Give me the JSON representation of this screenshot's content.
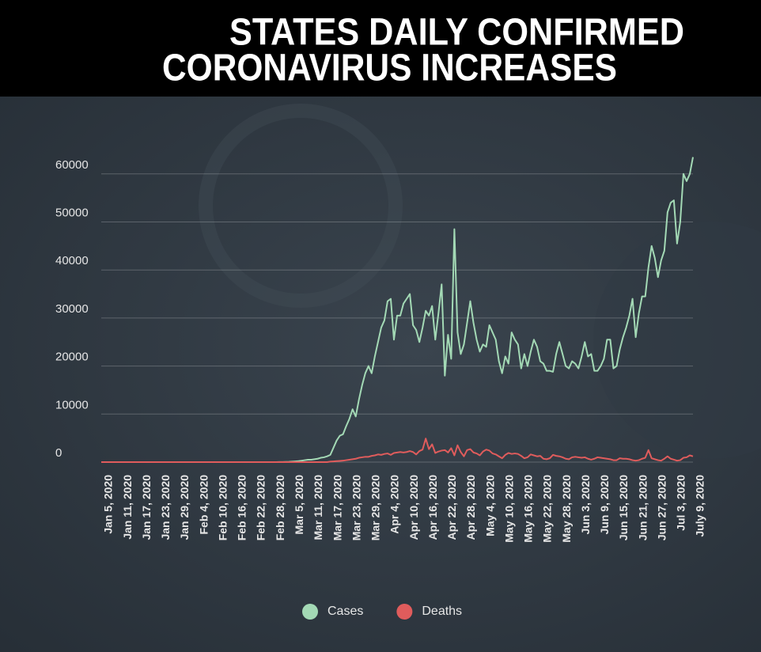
{
  "chart_data": {
    "type": "line",
    "title": [
      "STATES DAILY CONFIRMED",
      "CORONAVIRUS INCREASES"
    ],
    "categories": [
      "Jan 5, 2020",
      null,
      null,
      null,
      null,
      null,
      "Jan 11, 2020",
      null,
      null,
      null,
      null,
      null,
      "Jan 17, 2020",
      null,
      null,
      null,
      null,
      null,
      "Jan 23, 2020",
      null,
      null,
      null,
      null,
      null,
      "Jan 29, 2020",
      null,
      null,
      null,
      null,
      null,
      "Feb 4, 2020",
      null,
      null,
      null,
      null,
      null,
      "Feb 10, 2020",
      null,
      null,
      null,
      null,
      null,
      "Feb 16, 2020",
      null,
      null,
      null,
      null,
      null,
      "Feb 22, 2020",
      null,
      null,
      null,
      null,
      null,
      "Feb 28, 2020",
      null,
      null,
      null,
      null,
      null,
      "Mar 5, 2020",
      null,
      null,
      null,
      null,
      null,
      "Mar 11, 2020",
      null,
      null,
      null,
      null,
      null,
      "Mar 17, 2020",
      null,
      null,
      null,
      null,
      null,
      "Mar 23, 2020",
      null,
      null,
      null,
      null,
      null,
      "Mar 29, 2020",
      null,
      null,
      null,
      null,
      null,
      "Apr 4, 2020",
      null,
      null,
      null,
      null,
      null,
      "Apr 10, 2020",
      null,
      null,
      null,
      null,
      null,
      "Apr 16, 2020",
      null,
      null,
      null,
      null,
      null,
      "Apr 22, 2020",
      null,
      null,
      null,
      null,
      null,
      "Apr 28, 2020",
      null,
      null,
      null,
      null,
      null,
      "May 4, 2020",
      null,
      null,
      null,
      null,
      null,
      "May 10, 2020",
      null,
      null,
      null,
      null,
      null,
      "May 16, 2020",
      null,
      null,
      null,
      null,
      null,
      "May 22, 2020",
      null,
      null,
      null,
      null,
      null,
      "May 28, 2020",
      null,
      null,
      null,
      null,
      null,
      "Jun 3, 2020",
      null,
      null,
      null,
      null,
      null,
      "Jun 9, 2020",
      null,
      null,
      null,
      null,
      null,
      "Jun 15, 2020",
      null,
      null,
      null,
      null,
      null,
      "Jun 21, 2020",
      null,
      null,
      null,
      null,
      null,
      "Jun 27, 2020",
      null,
      null,
      null,
      null,
      null,
      "Jul 3, 2020",
      null,
      null,
      null,
      null,
      null,
      "July 9, 2020"
    ],
    "series": [
      {
        "name": "Cases",
        "color": "#a3d9b5",
        "values": [
          0,
          0,
          0,
          0,
          0,
          0,
          0,
          0,
          0,
          0,
          0,
          0,
          0,
          0,
          0,
          0,
          0,
          0,
          0,
          0,
          0,
          0,
          0,
          0,
          0,
          0,
          0,
          0,
          0,
          0,
          0,
          0,
          0,
          0,
          0,
          0,
          0,
          0,
          0,
          0,
          0,
          0,
          0,
          0,
          0,
          0,
          0,
          0,
          0,
          0,
          0,
          0,
          5,
          5,
          10,
          10,
          20,
          30,
          40,
          60,
          100,
          150,
          200,
          300,
          400,
          500,
          500,
          600,
          700,
          900,
          1000,
          1200,
          1500,
          3000,
          4500,
          5500,
          5800,
          7500,
          9000,
          11000,
          9500,
          13000,
          16000,
          18500,
          20000,
          18500,
          22000,
          25000,
          28000,
          29500,
          33500,
          34000,
          25500,
          30500,
          30500,
          33000,
          34000,
          35000,
          28500,
          27500,
          25000,
          28000,
          31500,
          30500,
          32500,
          25500,
          31000,
          37000,
          18000,
          26500,
          21500,
          48500,
          27000,
          22500,
          24500,
          29000,
          33500,
          29000,
          25500,
          23000,
          24500,
          24000,
          28500,
          27000,
          25500,
          21000,
          18500,
          22000,
          20500,
          27000,
          25500,
          24500,
          19500,
          22500,
          20000,
          23000,
          25500,
          24000,
          21000,
          20500,
          19000,
          19000,
          18800,
          22500,
          25000,
          22500,
          20000,
          19500,
          21000,
          20500,
          19500,
          22000,
          25000,
          22000,
          22500,
          19000,
          19000,
          20000,
          21500,
          25500,
          25500,
          19500,
          20000,
          23500,
          26000,
          28000,
          30500,
          34000,
          26000,
          31000,
          34500,
          34500,
          40500,
          45000,
          42500,
          38500,
          42000,
          44000,
          52000,
          54000,
          54500,
          45500,
          50000,
          60000,
          58500,
          60000,
          63500
        ]
      },
      {
        "name": "Deaths",
        "color": "#e05c5c",
        "values": [
          0,
          0,
          0,
          0,
          0,
          0,
          0,
          0,
          0,
          0,
          0,
          0,
          0,
          0,
          0,
          0,
          0,
          0,
          0,
          0,
          0,
          0,
          0,
          0,
          0,
          0,
          0,
          0,
          0,
          0,
          0,
          0,
          0,
          0,
          0,
          0,
          0,
          0,
          0,
          0,
          0,
          0,
          0,
          0,
          0,
          0,
          0,
          0,
          0,
          0,
          0,
          0,
          0,
          0,
          0,
          0,
          0,
          0,
          0,
          0,
          0,
          0,
          0,
          0,
          0,
          0,
          0,
          0,
          0,
          0,
          0,
          0,
          100,
          150,
          200,
          250,
          300,
          400,
          500,
          600,
          700,
          900,
          1000,
          1100,
          1100,
          1300,
          1400,
          1600,
          1500,
          1700,
          1800,
          1500,
          1900,
          2000,
          2100,
          2000,
          2100,
          2300,
          2100,
          1600,
          2300,
          2600,
          4900,
          2700,
          3700,
          1900,
          2200,
          2400,
          2500,
          2000,
          2900,
          1400,
          3500,
          2100,
          1200,
          2500,
          2700,
          2000,
          1800,
          1400,
          2200,
          2600,
          2400,
          1800,
          1600,
          1200,
          800,
          1500,
          1900,
          1700,
          1800,
          1700,
          1300,
          800,
          1000,
          1600,
          1400,
          1200,
          1300,
          700,
          600,
          800,
          1500,
          1300,
          1200,
          1000,
          700,
          600,
          1000,
          1100,
          1000,
          900,
          1000,
          700,
          500,
          700,
          1000,
          900,
          800,
          700,
          600,
          400,
          400,
          800,
          700,
          700,
          600,
          400,
          300,
          400,
          700,
          900,
          2500,
          800,
          600,
          400,
          300,
          700,
          1200,
          700,
          500,
          300,
          400,
          900,
          1000,
          1400,
          1200
        ]
      }
    ],
    "ylim": [
      0,
      65000
    ],
    "yticks": [
      0,
      10000,
      20000,
      30000,
      40000,
      50000,
      60000
    ],
    "grid": true,
    "legend": "bottom"
  }
}
